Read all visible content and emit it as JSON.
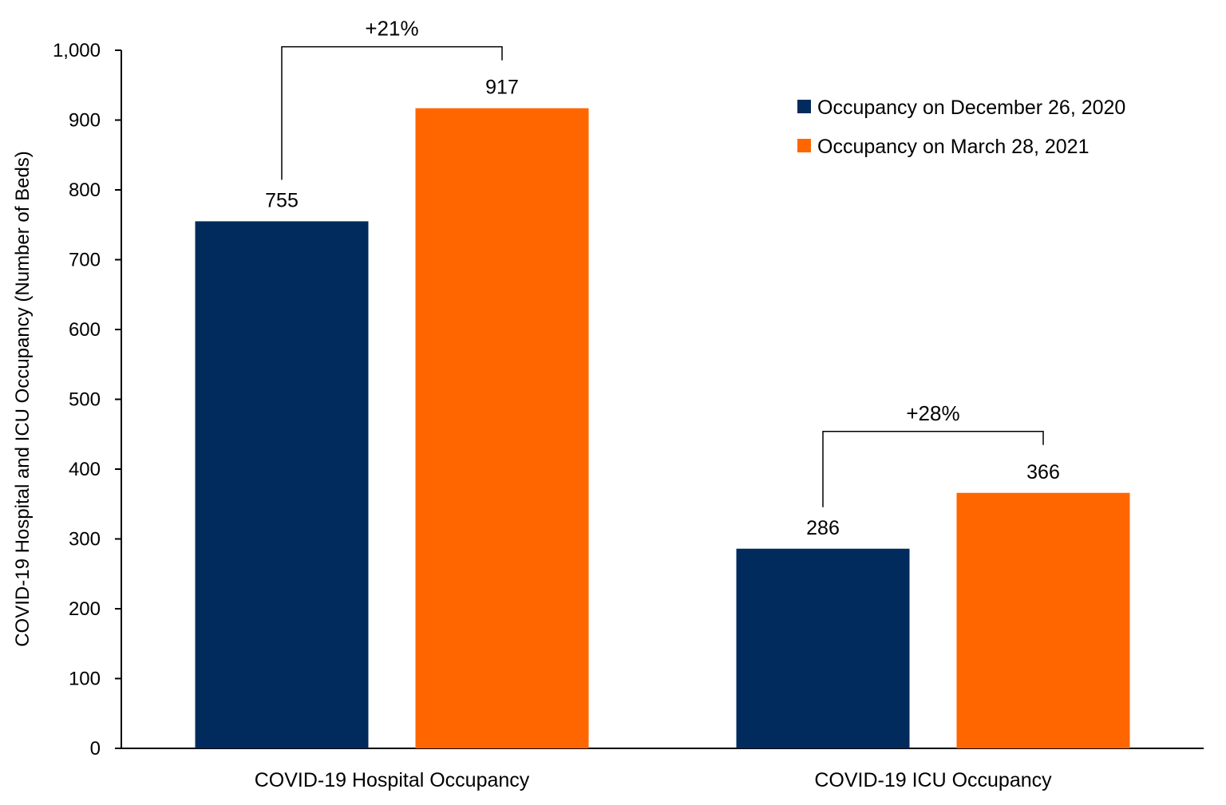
{
  "chart_data": {
    "type": "bar",
    "title": "",
    "xlabel": "",
    "ylabel": "COVID-19 Hospital and ICU Occupancy (Number of Beds)",
    "categories": [
      "COVID-19 Hospital Occupancy",
      "COVID-19 ICU Occupancy"
    ],
    "series": [
      {
        "name": "Occupancy on December 26, 2020",
        "color": "#002B5C",
        "values": [
          755,
          286
        ]
      },
      {
        "name": "Occupancy on March 28, 2021",
        "color": "#FF6600",
        "values": [
          917,
          366
        ]
      }
    ],
    "data_labels": [
      [
        "755",
        "286"
      ],
      [
        "917",
        "366"
      ]
    ],
    "ylim": [
      0,
      1000
    ],
    "yticks": [
      0,
      100,
      200,
      300,
      400,
      500,
      600,
      700,
      800,
      900,
      1000
    ],
    "ytick_labels": [
      "0",
      "100",
      "200",
      "300",
      "400",
      "500",
      "600",
      "700",
      "800",
      "900",
      "1,000"
    ],
    "grid": false,
    "legend_position": "top-right",
    "annotations": [
      {
        "category_index": 0,
        "text": "+21%"
      },
      {
        "category_index": 1,
        "text": "+28%"
      }
    ]
  }
}
